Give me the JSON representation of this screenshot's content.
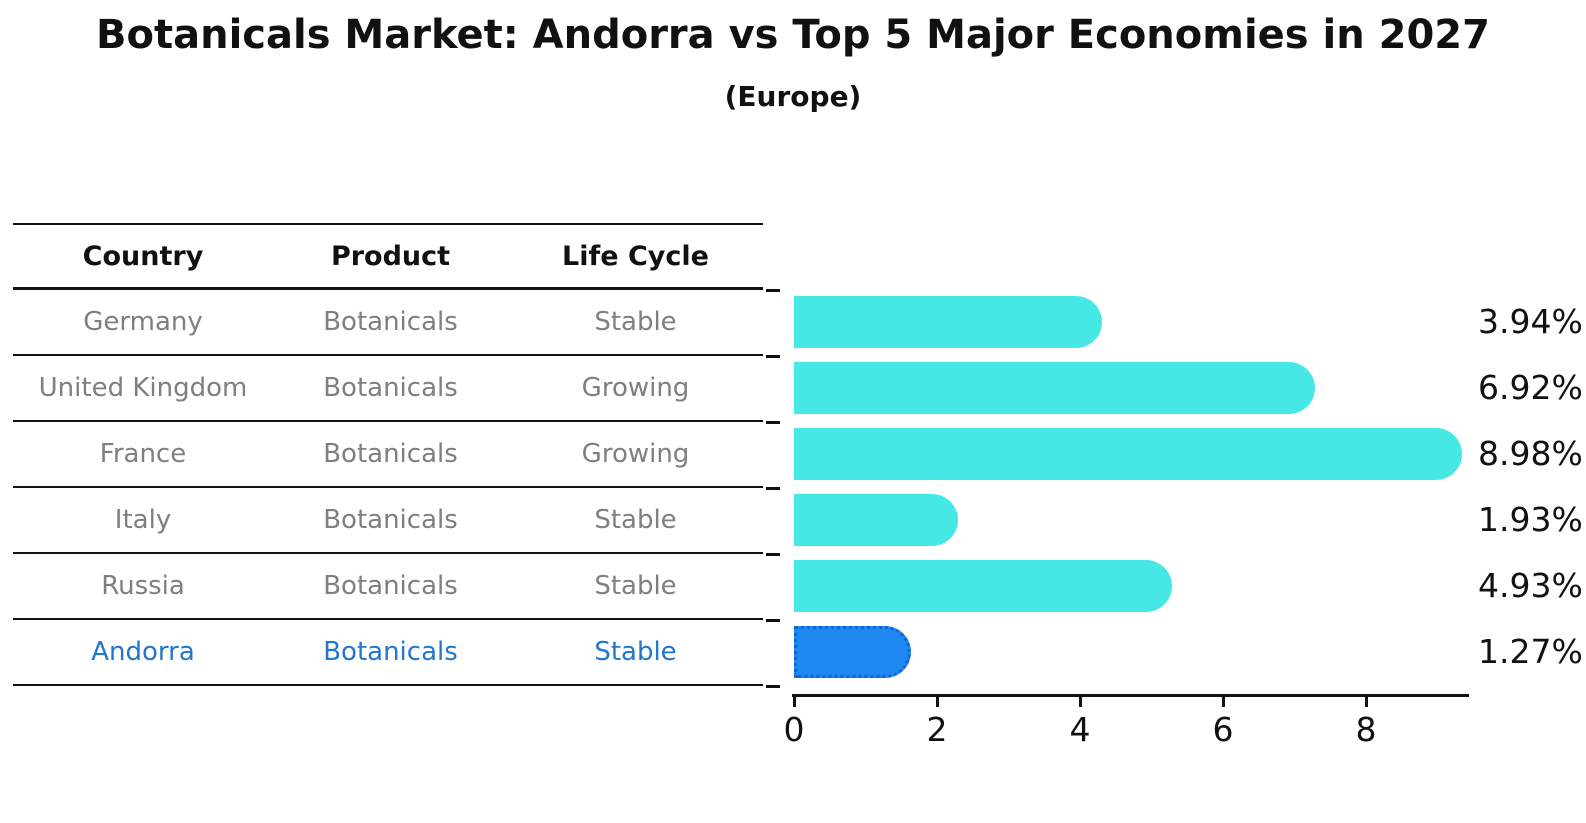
{
  "header": {
    "title": "Botanicals Market: Andorra vs Top 5 Major Economies in 2027",
    "subtitle": "(Europe)"
  },
  "table": {
    "columns": [
      "Country",
      "Product",
      "Life Cycle"
    ],
    "rows": [
      {
        "country": "Germany",
        "product": "Botanicals",
        "life_cycle": "Stable",
        "highlight": false
      },
      {
        "country": "United Kingdom",
        "product": "Botanicals",
        "life_cycle": "Growing",
        "highlight": false
      },
      {
        "country": "France",
        "product": "Botanicals",
        "life_cycle": "Growing",
        "highlight": false
      },
      {
        "country": "Italy",
        "product": "Botanicals",
        "life_cycle": "Stable",
        "highlight": false
      },
      {
        "country": "Russia",
        "product": "Botanicals",
        "life_cycle": "Stable",
        "highlight": false
      },
      {
        "country": "Andorra",
        "product": "Botanicals",
        "life_cycle": "Stable",
        "highlight": true
      }
    ]
  },
  "chart_data": {
    "type": "bar",
    "orientation": "horizontal",
    "title": "Botanicals Market: Andorra vs Top 5 Major Economies in 2027",
    "subtitle": "(Europe)",
    "categories": [
      "Germany",
      "United Kingdom",
      "France",
      "Italy",
      "Russia",
      "Andorra"
    ],
    "values": [
      3.94,
      6.92,
      8.98,
      1.93,
      4.93,
      1.27
    ],
    "value_labels": [
      "3.94%",
      "6.92%",
      "8.98%",
      "1.93%",
      "4.93%",
      "1.27%"
    ],
    "highlight_index": 5,
    "xlabel": "",
    "ylabel": "",
    "xticks": [
      0,
      2,
      4,
      6,
      8
    ],
    "xlim": [
      0,
      9.43
    ],
    "grid": false,
    "legend": "none",
    "colors": {
      "bar": "#45E8E5",
      "highlight_bar": "#1E87F0",
      "highlight_bar_border": "#1263DC",
      "highlight_text": "#2176CD",
      "row_text": "#7f7f7f",
      "header_text": "#111111"
    }
  }
}
